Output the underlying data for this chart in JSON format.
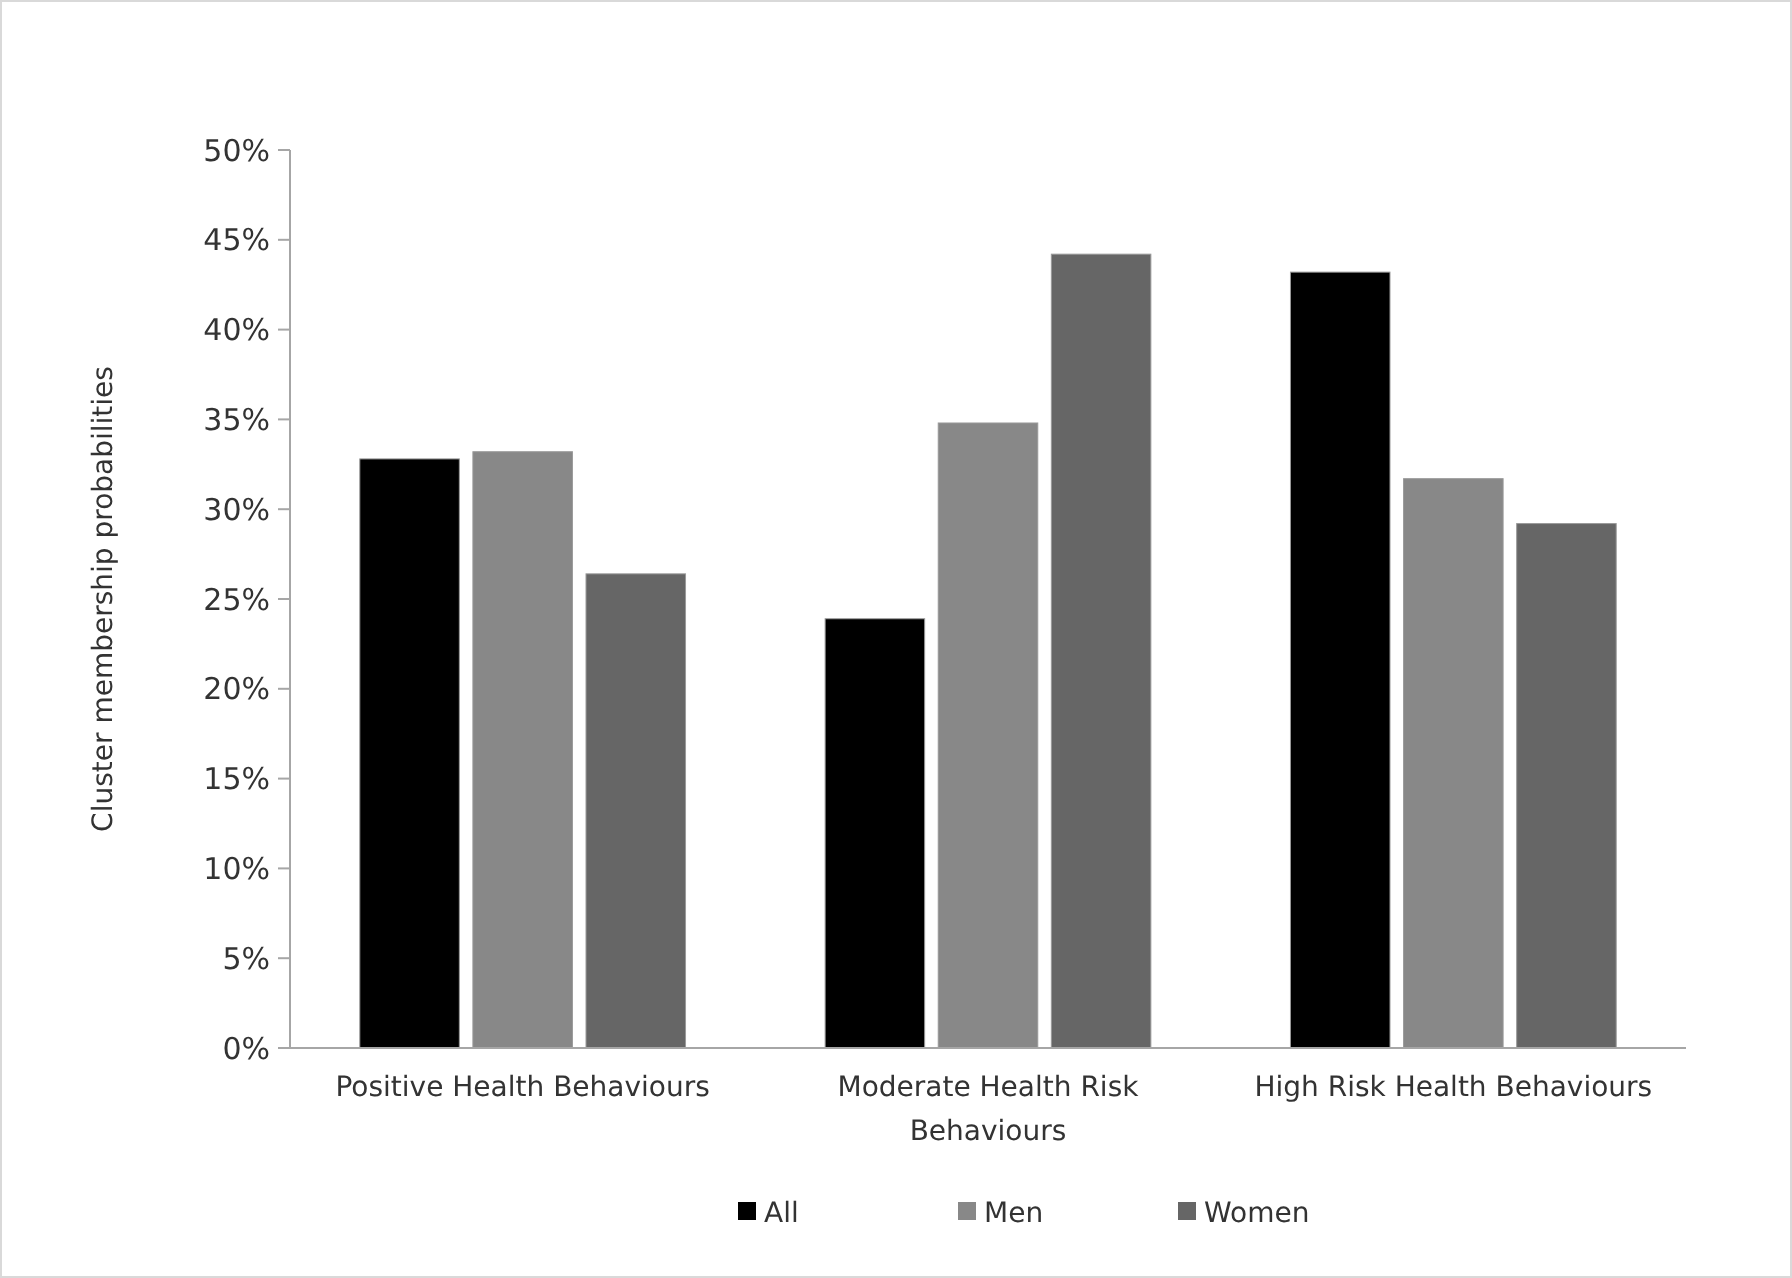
{
  "chart_data": {
    "type": "bar",
    "ylabel": "Cluster membership probabilities",
    "categories": [
      "Positive Health Behaviours",
      "Moderate Health Risk Behaviours",
      "High Risk Health Behaviours"
    ],
    "series": [
      {
        "name": "All",
        "color": "#000000",
        "values": [
          32.8,
          23.9,
          43.2
        ]
      },
      {
        "name": "Men",
        "color": "#888888",
        "values": [
          33.2,
          34.8,
          31.7
        ]
      },
      {
        "name": "Women",
        "color": "#666666",
        "values": [
          26.4,
          44.2,
          29.2
        ]
      }
    ],
    "ylim": [
      0,
      50
    ],
    "yticks": [
      {
        "value": 0,
        "label": "0%"
      },
      {
        "value": 5,
        "label": "5%"
      },
      {
        "value": 10,
        "label": "10%"
      },
      {
        "value": 15,
        "label": "15%"
      },
      {
        "value": 20,
        "label": "20%"
      },
      {
        "value": 25,
        "label": "25%"
      },
      {
        "value": 30,
        "label": "30%"
      },
      {
        "value": 35,
        "label": "35%"
      },
      {
        "value": 40,
        "label": "40%"
      },
      {
        "value": 45,
        "label": "45%"
      },
      {
        "value": 50,
        "label": "50%"
      }
    ],
    "grid": false,
    "legend": "bottom"
  }
}
